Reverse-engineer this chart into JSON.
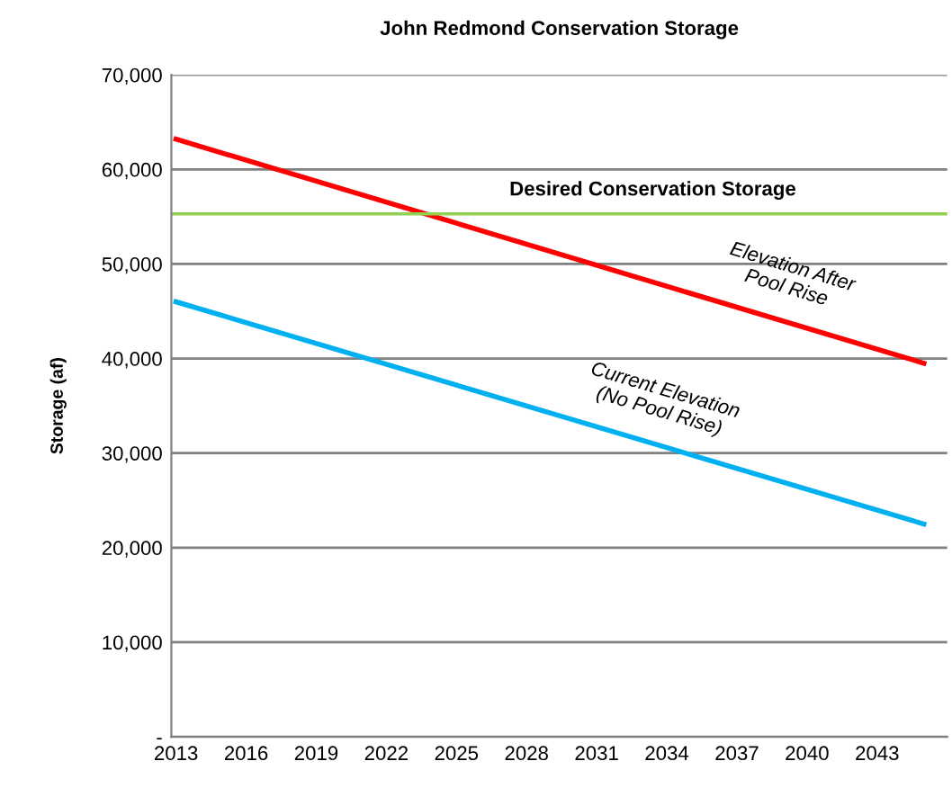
{
  "chart_data": {
    "type": "line",
    "title": "John Redmond Conservation Storage",
    "ylabel": "Storage (af)",
    "x": [
      2013,
      2045
    ],
    "series": [
      {
        "name": "Elevation After\nPool Rise",
        "color": "#ff0000",
        "values": [
          63200,
          39500
        ]
      },
      {
        "name": "Current Elevation\n(No Pool Rise)",
        "color": "#00b0f0",
        "values": [
          46000,
          22500
        ]
      }
    ],
    "ref_lines": [
      {
        "axis": "y",
        "value": 55300,
        "label": "Desired Conservation Storage",
        "color": "#92d050"
      }
    ],
    "xlim": [
      2012.8,
      2046
    ],
    "xticks": [
      2013,
      2016,
      2019,
      2022,
      2025,
      2028,
      2031,
      2034,
      2037,
      2040,
      2043
    ],
    "ylim": [
      0,
      70000
    ],
    "yticks": [
      {
        "value": 0,
        "label": "-"
      },
      {
        "value": 10000,
        "label": "10,000"
      },
      {
        "value": 20000,
        "label": "20,000"
      },
      {
        "value": 30000,
        "label": "30,000"
      },
      {
        "value": 40000,
        "label": "40,000"
      },
      {
        "value": 50000,
        "label": "50,000"
      },
      {
        "value": 60000,
        "label": "60,000"
      },
      {
        "value": 70000,
        "label": "70,000"
      }
    ],
    "grid": "y",
    "legend": false,
    "marker": "none",
    "line_style": "solid"
  }
}
